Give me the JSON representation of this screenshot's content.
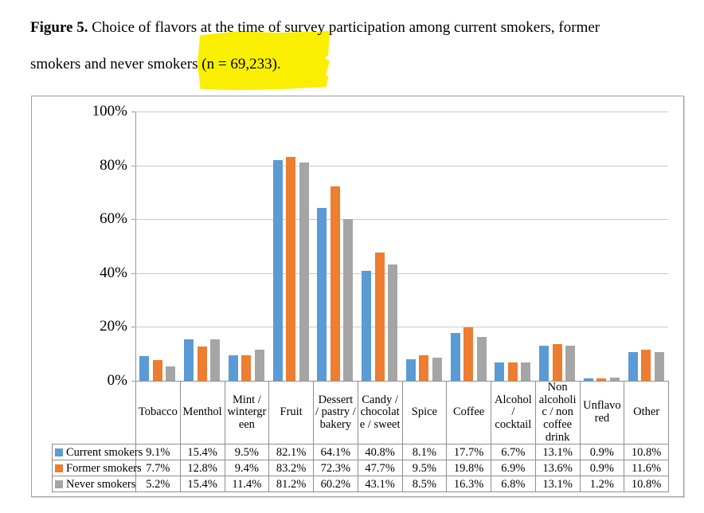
{
  "caption": {
    "line1_bold": "Figure 5.",
    "line1_rest": " Choice of flavors at the time of survey participation among current smokers, former",
    "line2": "smokers and never smokers (n = 69,233).",
    "highlight_color": "#faef00"
  },
  "chart_data": {
    "type": "bar",
    "title": "",
    "xlabel": "",
    "ylabel": "",
    "ylim": [
      0,
      100
    ],
    "grid": true,
    "legend_position": "table-left",
    "value_format": "percent",
    "y_ticks": [
      "100%",
      "80%",
      "60%",
      "40%",
      "20%",
      "0%"
    ],
    "categories": [
      "Tobacco",
      "Menthol",
      "Mint / wintergreen",
      "Fruit",
      "Dessert / pastry / bakery",
      "Candy / chocolate / sweet",
      "Spice",
      "Coffee",
      "Alcohol / cocktail",
      "Non alcoholic / non coffee drink",
      "Unflavored",
      "Other"
    ],
    "series": [
      {
        "name": "Current smokers",
        "color": "#5B9BD5",
        "values": [
          9.1,
          15.4,
          9.5,
          82.1,
          64.1,
          40.8,
          8.1,
          17.7,
          6.7,
          13.1,
          0.9,
          10.8
        ]
      },
      {
        "name": "Former smokers",
        "color": "#ED7D31",
        "values": [
          7.7,
          12.8,
          9.4,
          83.2,
          72.3,
          47.7,
          9.5,
          19.8,
          6.9,
          13.6,
          0.9,
          11.6
        ]
      },
      {
        "name": "Never smokers",
        "color": "#A5A5A5",
        "values": [
          5.2,
          15.4,
          11.4,
          81.2,
          60.2,
          43.1,
          8.5,
          16.3,
          6.8,
          13.1,
          1.2,
          10.8
        ]
      }
    ]
  }
}
